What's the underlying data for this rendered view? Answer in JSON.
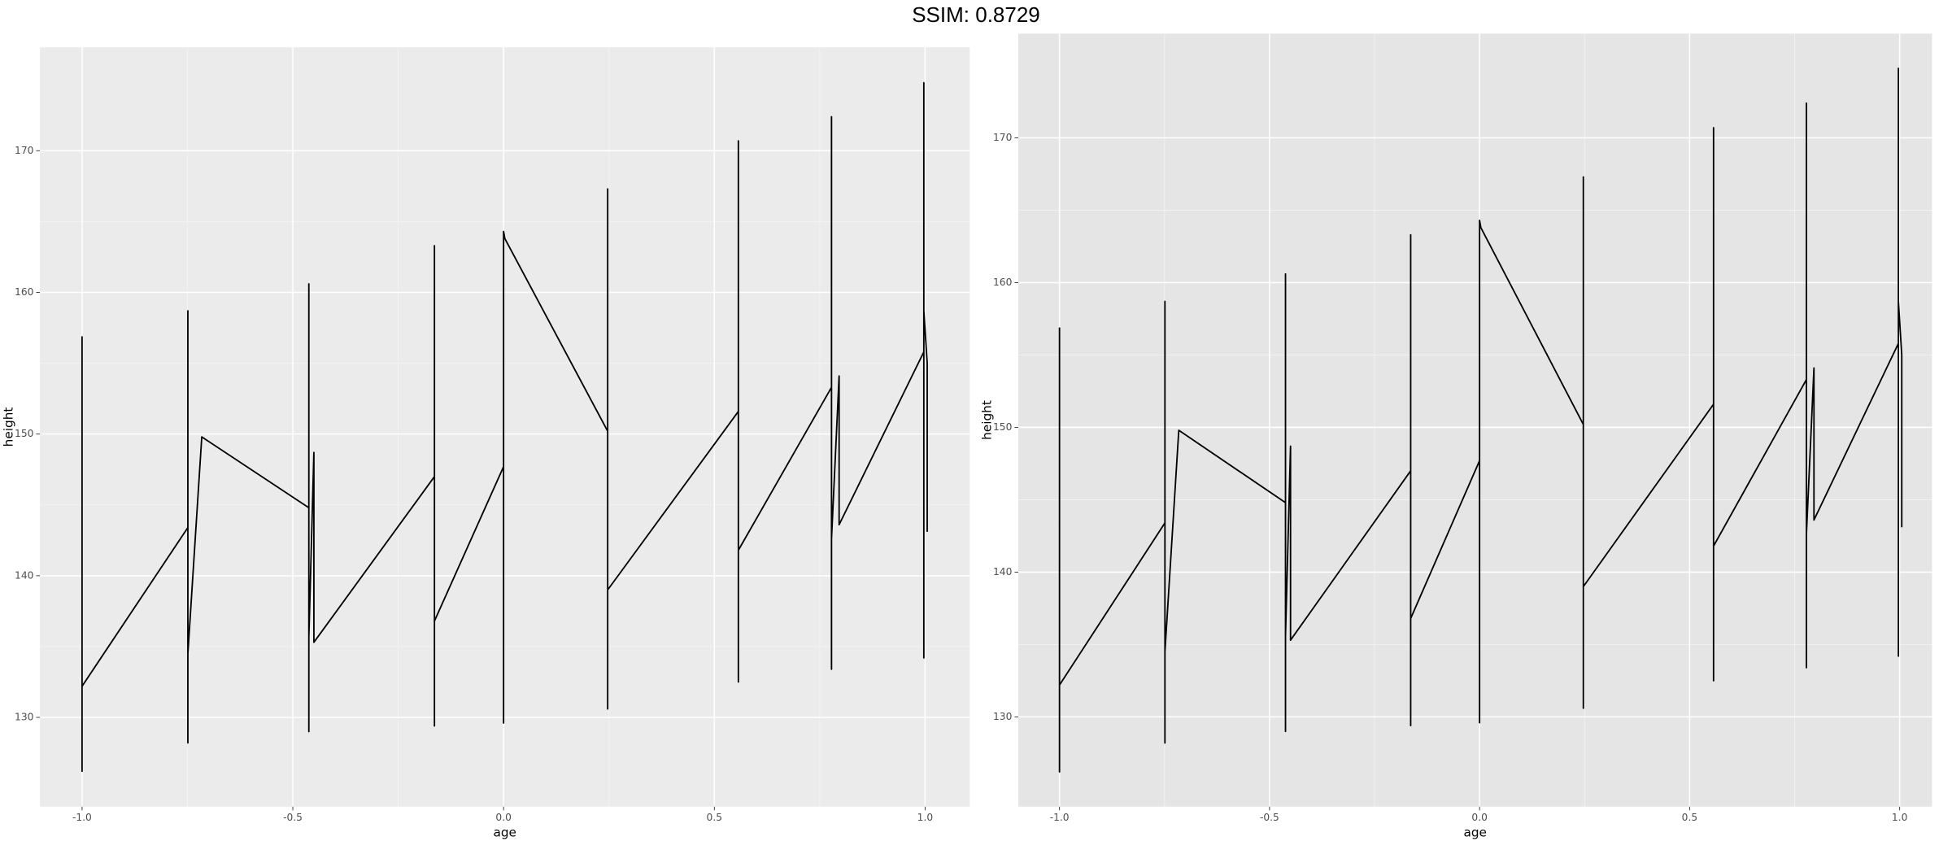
{
  "title": "SSIM: 0.8729",
  "chart_data": [
    {
      "type": "line",
      "x_label": "age",
      "y_label": "height",
      "color": "#000000",
      "background": "#ebebeb",
      "grid": true,
      "x": [
        -1,
        -1,
        -1,
        -0.749,
        -0.749,
        -0.749,
        -0.749,
        -0.716,
        -0.462,
        -0.462,
        -0.462,
        -0.462,
        -0.45,
        -0.45,
        -0.164,
        -0.164,
        -0.164,
        -0.164,
        0,
        0,
        0,
        0.003,
        0.247,
        0.247,
        0.247,
        0.247,
        0.557,
        0.557,
        0.557,
        0.557,
        0.778,
        0.778,
        0.778,
        0.778,
        0.796,
        0.796,
        0.997,
        0.997,
        0.997,
        0.997,
        1.005,
        1.005
      ],
      "values": [
        156.9,
        126.2,
        132.2,
        143.4,
        158.7,
        128.2,
        134.5,
        149.8,
        144.8,
        160.6,
        129.0,
        135.6,
        148.7,
        135.3,
        147.0,
        163.3,
        129.4,
        136.8,
        147.7,
        129.6,
        164.3,
        163.8,
        150.2,
        167.3,
        130.6,
        139.0,
        151.6,
        170.7,
        132.5,
        141.8,
        153.3,
        172.4,
        133.4,
        142.6,
        154.1,
        143.6,
        155.8,
        174.8,
        134.2,
        158.7,
        155.0,
        143.1
      ],
      "xlim": [
        -1.1,
        1.106
      ],
      "ylim": [
        123.7,
        177.3
      ],
      "xticks": [
        {
          "value": -1,
          "label": "-1.0"
        },
        -0.5,
        {
          "value": 0,
          "label": "0.0"
        },
        0.5,
        {
          "value": 1,
          "label": "1.0"
        }
      ],
      "yticks": [
        130,
        140,
        150,
        160,
        170
      ]
    },
    {
      "type": "line",
      "x_label": "age",
      "y_label": "height",
      "color": "#000000",
      "background": "#e5e5e5",
      "grid": true,
      "x": [
        -1,
        -1,
        -1,
        -0.749,
        -0.749,
        -0.749,
        -0.749,
        -0.716,
        -0.462,
        -0.462,
        -0.462,
        -0.462,
        -0.45,
        -0.45,
        -0.164,
        -0.164,
        -0.164,
        -0.164,
        0,
        0,
        0,
        0.003,
        0.247,
        0.247,
        0.247,
        0.247,
        0.557,
        0.557,
        0.557,
        0.557,
        0.778,
        0.778,
        0.778,
        0.778,
        0.796,
        0.796,
        0.997,
        0.997,
        0.997,
        0.997,
        1.005,
        1.005
      ],
      "values": [
        156.9,
        126.2,
        132.2,
        143.4,
        158.7,
        128.2,
        134.5,
        149.8,
        144.8,
        160.6,
        129.0,
        135.6,
        148.7,
        135.3,
        147.0,
        163.3,
        129.4,
        136.8,
        147.7,
        129.6,
        164.3,
        163.8,
        150.2,
        167.3,
        130.6,
        139.0,
        151.6,
        170.7,
        132.5,
        141.8,
        153.3,
        172.4,
        133.4,
        142.6,
        154.1,
        143.6,
        155.8,
        174.8,
        134.2,
        158.7,
        155.0,
        143.1
      ],
      "xlim": [
        -1.098,
        1.077
      ],
      "ylim": [
        123.8,
        177.2
      ],
      "xticks": [
        {
          "value": -1,
          "label": "-1.0"
        },
        -0.5,
        {
          "value": 0,
          "label": "0.0"
        },
        0.5,
        {
          "value": 1,
          "label": "1.0"
        }
      ],
      "yticks": [
        130,
        140,
        150,
        160,
        170
      ]
    }
  ]
}
